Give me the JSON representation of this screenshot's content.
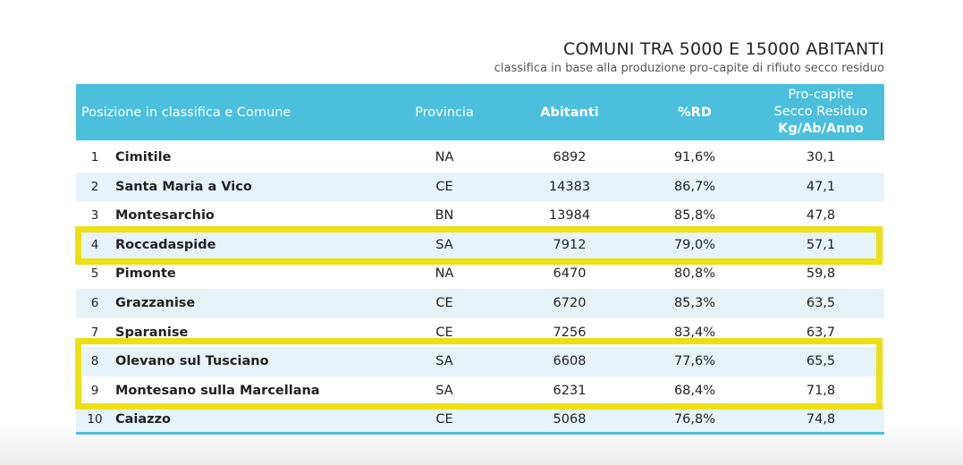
{
  "title": "COMUNI TRA 5000 E 15000 ABITANTI",
  "subtitle": "classifica in base alla produzione pro-capite di rifiuto secco residuo",
  "header": {
    "posizione": "Posizione in classifica e Comune",
    "provincia": "Provincia",
    "abitanti": "Abitanti",
    "rd": "%RD",
    "procapite_line1": "Pro-capite",
    "procapite_line2": "Secco Residuo",
    "procapite_line3": "Kg/Ab/Anno"
  },
  "rows": [
    {
      "pos": "1",
      "comune": "Cimitile",
      "provincia": "NA",
      "abitanti": "6892",
      "rd": "91,6%",
      "procapite": "30,1",
      "highlighted": false
    },
    {
      "pos": "2",
      "comune": "Santa Maria a Vico",
      "provincia": "CE",
      "abitanti": "14383",
      "rd": "86,7%",
      "procapite": "47,1",
      "highlighted": false
    },
    {
      "pos": "3",
      "comune": "Montesarchio",
      "provincia": "BN",
      "abitanti": "13984",
      "rd": "85,8%",
      "procapite": "47,8",
      "highlighted": false
    },
    {
      "pos": "4",
      "comune": "Roccadaspide",
      "provincia": "SA",
      "abitanti": "7912",
      "rd": "79,0%",
      "procapite": "57,1",
      "highlighted": true
    },
    {
      "pos": "5",
      "comune": "Pimonte",
      "provincia": "NA",
      "abitanti": "6470",
      "rd": "80,8%",
      "procapite": "59,8",
      "highlighted": false
    },
    {
      "pos": "6",
      "comune": "Grazzanise",
      "provincia": "CE",
      "abitanti": "6720",
      "rd": "85,3%",
      "procapite": "63,5",
      "highlighted": false
    },
    {
      "pos": "7",
      "comune": "Sparanise",
      "provincia": "CE",
      "abitanti": "7256",
      "rd": "83,4%",
      "procapite": "63,7",
      "highlighted": false
    },
    {
      "pos": "8",
      "comune": "Olevano sul Tusciano",
      "provincia": "SA",
      "abitanti": "6608",
      "rd": "77,6%",
      "procapite": "65,5",
      "highlighted": true
    },
    {
      "pos": "9",
      "comune": "Montesano sulla Marcellana",
      "provincia": "SA",
      "abitanti": "6231",
      "rd": "68,4%",
      "procapite": "71,8",
      "highlighted": true
    },
    {
      "pos": "10",
      "comune": "Caiazzo",
      "provincia": "CE",
      "abitanti": "5068",
      "rd": "76,8%",
      "procapite": "74,8",
      "highlighted": false
    }
  ],
  "colors": {
    "header_bg": "#4bbfdc",
    "row_alt_bg": "#e6f3f9",
    "highlight_border": "#ede012"
  }
}
